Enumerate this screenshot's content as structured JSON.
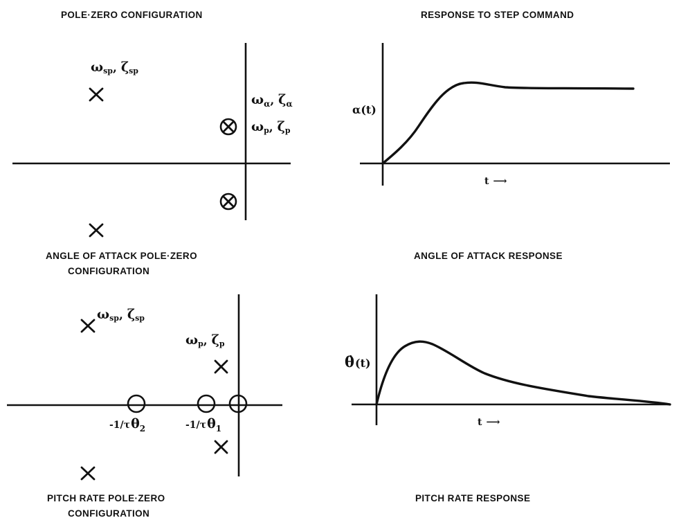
{
  "titles": {
    "left_top": "POLE·ZERO CONFIGURATION",
    "right_top": "RESPONSE TO STEP COMMAND"
  },
  "captions": {
    "aoa_pz_line1": "ANGLE OF ATTACK POLE·ZERO",
    "aoa_pz_line2": "CONFIGURATION",
    "aoa_response": "ANGLE OF ATTACK RESPONSE",
    "pitch_pz_line1": "PITCH RATE POLE·ZERO",
    "pitch_pz_line2": "CONFIGURATION",
    "pitch_response": "PITCH RATE RESPONSE"
  },
  "labels": {
    "omega": "ω",
    "zeta": "ζ",
    "alpha": "α",
    "sub_sp": "sp",
    "sub_p": "p",
    "sub_alpha": "α",
    "sep": ", ",
    "alpha_axis": "α(t)",
    "theta_dot": "θ̇",
    "t_suffix": "(t)",
    "t_axis": "t",
    "arrow": "⟶",
    "neg_inv_tau": "-1/τ",
    "theta": "θ",
    "sub_2": "2",
    "sub_1": "1"
  },
  "diagrams": {
    "aoa_pole_zero": {
      "poles": [
        "short-period pole (upper)",
        "short-period pole (lower)"
      ],
      "pole_zero_cancellations": [
        "upper phugoid pole + zero",
        "lower phugoid pole + zero"
      ]
    },
    "pitch_pole_zero": {
      "poles": [
        "short-period pole (upper)",
        "short-period pole (lower)",
        "phugoid pole (upper)",
        "phugoid pole (lower)"
      ],
      "zeros": [
        "-1/τθ2 zero",
        "-1/τθ1 zero",
        "origin zero"
      ]
    }
  }
}
